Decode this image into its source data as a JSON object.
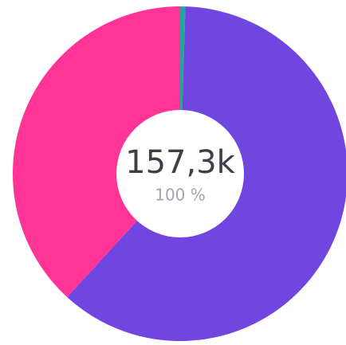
{
  "chart_data": {
    "type": "donut",
    "values": [
      0.5,
      61.3,
      38.2
    ],
    "colors": [
      "#26a69a",
      "#7145e0",
      "#ff3496"
    ],
    "center_label": "157,3k",
    "center_sublabel": "100 %"
  }
}
